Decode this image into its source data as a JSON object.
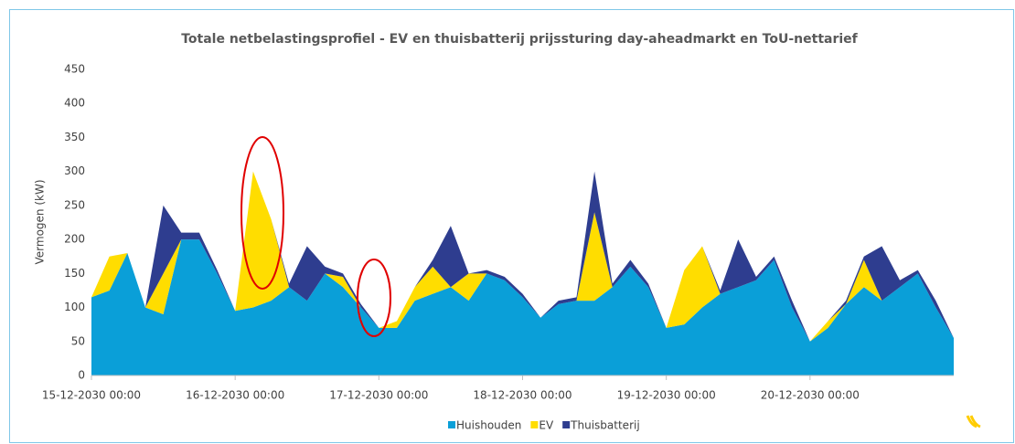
{
  "chart_data": {
    "type": "stacked-area",
    "title": "Totale netbelastingsprofiel - EV en thuisbatterij prijssturing day-aheadmarkt en ToU-nettarief",
    "y_label": "Vermogen (kW)",
    "x": [
      0,
      3,
      6,
      9,
      12,
      15,
      18,
      21,
      24,
      27,
      30,
      33,
      36,
      39,
      42,
      45,
      48,
      51,
      54,
      57,
      60,
      63,
      66,
      69,
      72,
      75,
      78,
      81,
      84,
      87,
      90,
      93,
      96,
      99,
      102,
      105,
      108,
      111,
      114,
      117,
      120,
      123,
      126,
      129,
      132,
      135,
      138,
      141,
      144
    ],
    "xlim": [
      0,
      144
    ],
    "xticks": [
      {
        "value": 0,
        "label": "15-12-2030 00:00"
      },
      {
        "value": 24,
        "label": "16-12-2030 00:00"
      },
      {
        "value": 48,
        "label": "17-12-2030 00:00"
      },
      {
        "value": 72,
        "label": "18-12-2030 00:00"
      },
      {
        "value": 96,
        "label": "19-12-2030 00:00"
      },
      {
        "value": 120,
        "label": "20-12-2030 00:00"
      }
    ],
    "ylim": [
      0,
      450
    ],
    "yticks": [
      0,
      50,
      100,
      150,
      200,
      250,
      300,
      350,
      400,
      450
    ],
    "series": [
      {
        "name": "Huishouden",
        "color": "#0a9fd8",
        "values": [
          115,
          125,
          180,
          100,
          90,
          200,
          200,
          150,
          95,
          100,
          110,
          130,
          110,
          150,
          130,
          100,
          70,
          70,
          110,
          120,
          130,
          110,
          150,
          140,
          115,
          85,
          105,
          110,
          110,
          130,
          160,
          130,
          70,
          75,
          100,
          120,
          130,
          140,
          170,
          100,
          50,
          70,
          105,
          130,
          110,
          130,
          150,
          100,
          55
        ]
      },
      {
        "name": "EV",
        "color": "#ffdd00",
        "values": [
          0,
          50,
          0,
          0,
          60,
          0,
          0,
          0,
          0,
          200,
          120,
          0,
          0,
          0,
          15,
          0,
          0,
          10,
          20,
          40,
          0,
          40,
          0,
          0,
          0,
          0,
          0,
          0,
          130,
          0,
          0,
          0,
          0,
          80,
          90,
          0,
          0,
          0,
          0,
          0,
          0,
          10,
          0,
          40,
          0,
          0,
          0,
          0,
          0
        ]
      },
      {
        "name": "Thuisbatterij",
        "color": "#2e3d8f",
        "values": [
          0,
          0,
          0,
          0,
          100,
          10,
          10,
          5,
          0,
          0,
          0,
          5,
          80,
          10,
          5,
          5,
          0,
          0,
          0,
          10,
          90,
          0,
          5,
          5,
          5,
          0,
          5,
          5,
          60,
          5,
          10,
          5,
          0,
          0,
          0,
          5,
          70,
          5,
          5,
          10,
          0,
          0,
          5,
          5,
          80,
          10,
          5,
          10,
          0
        ]
      }
    ]
  }
}
